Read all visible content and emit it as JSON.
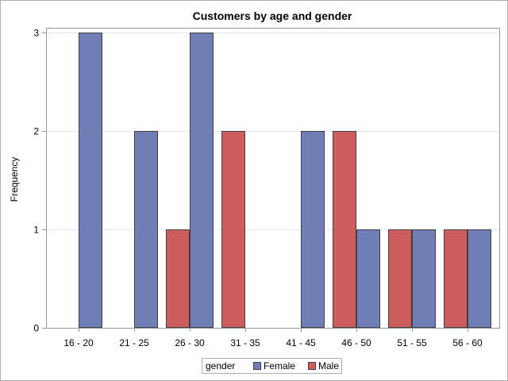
{
  "chart_data": {
    "type": "bar",
    "title": "Customers by age and gender",
    "xlabel": "",
    "ylabel": "Frequency",
    "ylim": [
      0,
      3
    ],
    "yticks": [
      0,
      1,
      2,
      3
    ],
    "grid": true,
    "legend_position": "bottom",
    "legend_title": "gender",
    "categories": [
      "16 - 20",
      "21 - 25",
      "26 - 30",
      "31 - 35",
      "41 - 45",
      "46 - 50",
      "51 - 55",
      "56 - 60"
    ],
    "series": [
      {
        "name": "Male",
        "color": "#CD5C5C",
        "values": [
          0,
          0,
          1,
          2,
          0,
          2,
          1,
          1
        ]
      },
      {
        "name": "Female",
        "color": "#6F7EB5",
        "values": [
          3,
          2,
          3,
          0,
          2,
          1,
          1,
          1
        ]
      }
    ]
  }
}
